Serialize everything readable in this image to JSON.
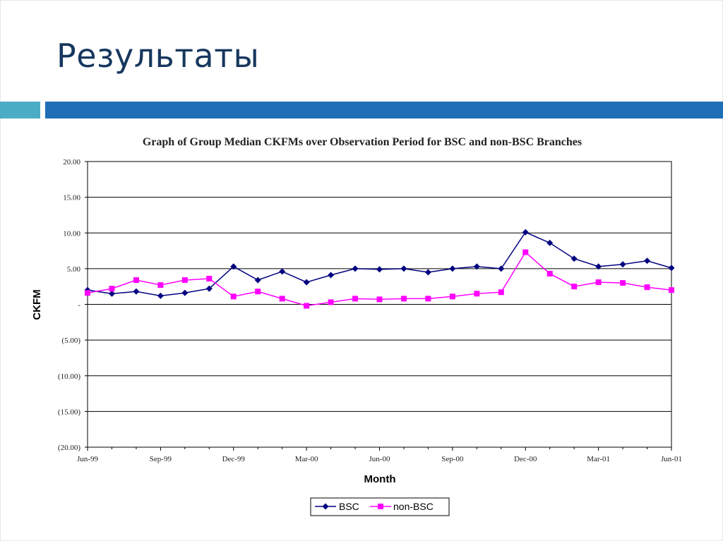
{
  "slide": {
    "title": "Результаты",
    "colors": {
      "title": "#17375e",
      "bar_left": "#4bacc6",
      "bar_right": "#1f6fb6"
    }
  },
  "chart_data": {
    "type": "line",
    "title": "Graph of Group Median CKFMs over Observation Period for BSC and non-BSC Branches",
    "xlabel": "Month",
    "ylabel": "CKFM",
    "ylim": [
      -20,
      20
    ],
    "y_ticks": [
      "20.00",
      "15.00",
      "10.00",
      "5.00",
      "-",
      "(5.00)",
      "(10.00)",
      "(15.00)",
      "(20.00)"
    ],
    "x_tick_labels": [
      "Jun-99",
      "Sep-99",
      "Dec-99",
      "Mar-00",
      "Jun-00",
      "Sep-00",
      "Dec-00",
      "Mar-01",
      "Jun-01"
    ],
    "grid": "horizontal",
    "legend_position": "bottom",
    "x": [
      "Jun-99",
      "Jul-99",
      "Aug-99",
      "Sep-99",
      "Oct-99",
      "Nov-99",
      "Dec-99",
      "Jan-00",
      "Feb-00",
      "Mar-00",
      "Apr-00",
      "May-00",
      "Jun-00",
      "Jul-00",
      "Aug-00",
      "Sep-00",
      "Oct-00",
      "Nov-00",
      "Dec-00",
      "Jan-01",
      "Feb-01",
      "Mar-01",
      "Apr-01",
      "May-01",
      "Jun-01"
    ],
    "series": [
      {
        "name": "BSC",
        "color": "#000080",
        "marker": "diamond",
        "values": [
          2.0,
          1.5,
          1.8,
          1.2,
          1.6,
          2.2,
          5.3,
          3.4,
          4.6,
          3.1,
          4.1,
          5.0,
          4.9,
          5.0,
          4.5,
          5.0,
          5.3,
          5.0,
          10.1,
          8.6,
          6.4,
          5.3,
          5.6,
          6.1,
          5.1
        ]
      },
      {
        "name": "non-BSC",
        "color": "#ff00ff",
        "marker": "square",
        "values": [
          1.6,
          2.2,
          3.4,
          2.7,
          3.4,
          3.6,
          1.1,
          1.8,
          0.8,
          -0.2,
          0.3,
          0.8,
          0.7,
          0.8,
          0.8,
          1.1,
          1.5,
          1.7,
          7.3,
          4.3,
          2.5,
          3.1,
          3.0,
          2.4,
          2.0
        ]
      }
    ]
  }
}
